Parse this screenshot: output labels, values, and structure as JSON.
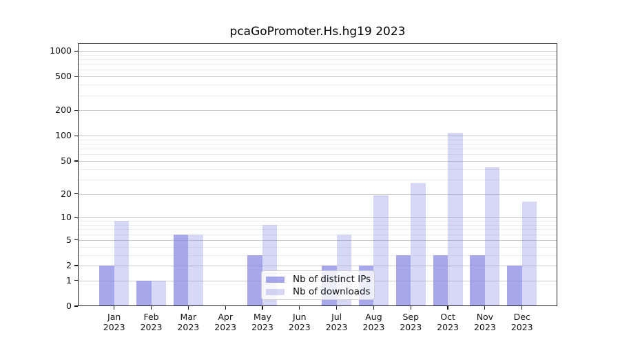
{
  "title": "pcaGoPromoter.Hs.hg19 2023",
  "chart_data": {
    "type": "bar",
    "title": "pcaGoPromoter.Hs.hg19 2023",
    "categories": [
      "Jan",
      "Feb",
      "Mar",
      "Apr",
      "May",
      "Jun",
      "Jul",
      "Aug",
      "Sep",
      "Oct",
      "Nov",
      "Dec"
    ],
    "category_year": "2023",
    "series": [
      {
        "name": "Nb of distinct IPs",
        "values": [
          2,
          1,
          6,
          0,
          3,
          0,
          2,
          2,
          3,
          3,
          3,
          2
        ],
        "color": "#8282e4",
        "opacity": 0.7
      },
      {
        "name": "Nb of downloads",
        "values": [
          9,
          1,
          6,
          0,
          8,
          0,
          6,
          19,
          27,
          108,
          42,
          16
        ],
        "color": "#8282e4",
        "opacity": 0.32
      }
    ],
    "xlabel": "",
    "ylabel": "",
    "y_scale": "log1p",
    "y_ticks_major": [
      0,
      1,
      2,
      5,
      10,
      20,
      50,
      100,
      200,
      500,
      1000
    ],
    "y_ticks_minor": [
      3,
      4,
      6,
      7,
      8,
      9,
      30,
      40,
      60,
      70,
      80,
      90,
      300,
      400,
      600,
      700,
      800,
      900
    ],
    "ylim": [
      0,
      1230
    ],
    "grid": "on",
    "legend_position": "lower-center-inside"
  },
  "colors": {
    "background": "#ffffff",
    "grid_major": "#c9c9c9",
    "grid_minor": "#ededed",
    "spine": "#1a1a1a",
    "bar_base": "#8282e4"
  }
}
